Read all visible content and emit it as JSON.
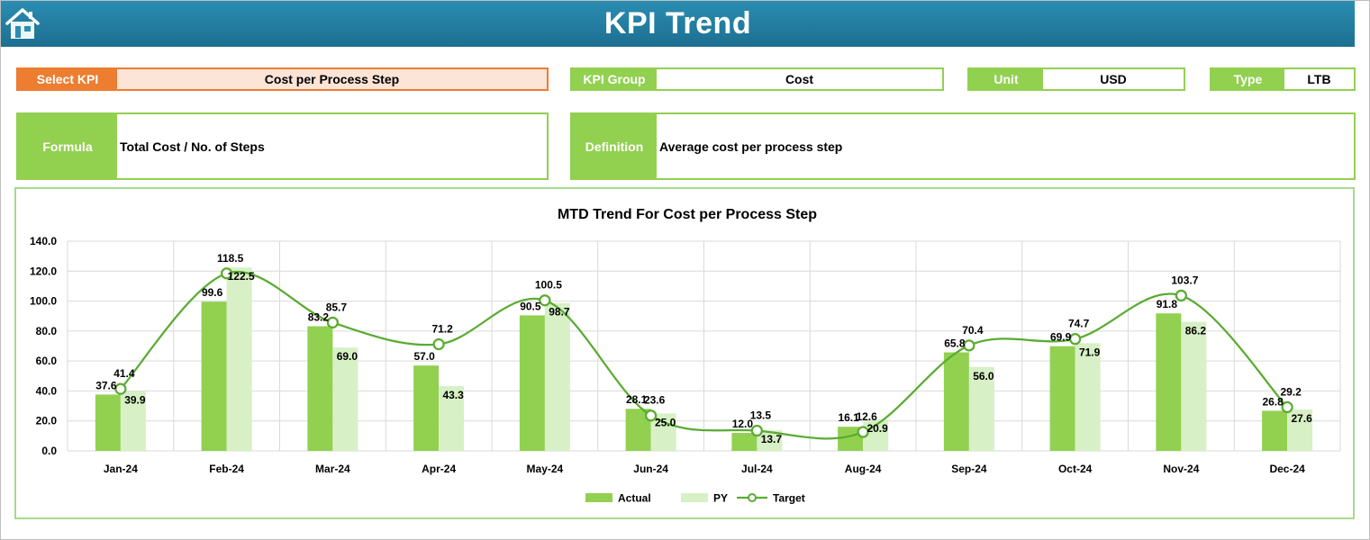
{
  "header": {
    "title": "KPI Trend",
    "home_icon": "home-icon"
  },
  "select_kpi": {
    "label": "Select KPI",
    "value": "Cost per Process Step"
  },
  "kpi_group": {
    "label": "KPI Group",
    "value": "Cost"
  },
  "unit": {
    "label": "Unit",
    "value": "USD"
  },
  "type": {
    "label": "Type",
    "value": "LTB"
  },
  "formula": {
    "label": "Formula",
    "value": "Total Cost / No. of Steps"
  },
  "definition": {
    "label": "Definition",
    "value": "Average cost per process step"
  },
  "colors": {
    "actual": "#92d050",
    "py": "#d7f0c6",
    "target": "#5bab32",
    "accent": "#ed7d31",
    "banner": "#1d6f90"
  },
  "chart_data": {
    "type": "bar",
    "title": "MTD Trend For Cost per Process Step",
    "xlabel": "",
    "ylabel": "",
    "categories": [
      "Jan-24",
      "Feb-24",
      "Mar-24",
      "Apr-24",
      "May-24",
      "Jun-24",
      "Jul-24",
      "Aug-24",
      "Sep-24",
      "Oct-24",
      "Nov-24",
      "Dec-24"
    ],
    "ylim": [
      0,
      140
    ],
    "y_ticks": [
      "0.0",
      "20.0",
      "40.0",
      "60.0",
      "80.0",
      "100.0",
      "120.0",
      "140.0"
    ],
    "grid": true,
    "legend_position": "bottom",
    "series": [
      {
        "name": "Actual",
        "kind": "bar",
        "values": [
          37.6,
          99.6,
          83.2,
          57.0,
          90.5,
          28.1,
          12.0,
          16.1,
          65.8,
          69.9,
          91.8,
          26.8
        ],
        "labels": [
          "37.6",
          "99.6",
          "83.2",
          "57.0",
          "90.5",
          "28.1",
          "12.0",
          "16.1",
          "65.8",
          "69.9",
          "91.8",
          "26.8"
        ]
      },
      {
        "name": "PY",
        "kind": "bar",
        "values": [
          39.9,
          122.5,
          69.0,
          43.3,
          98.7,
          25.0,
          13.7,
          20.9,
          56.0,
          71.9,
          86.2,
          27.6
        ],
        "labels": [
          "39.9",
          "122.5",
          "69.0",
          "43.3",
          "98.7",
          "25.0",
          "13.7",
          "20.9",
          "56.0",
          "71.9",
          "86.2",
          "27.6"
        ]
      },
      {
        "name": "Target",
        "kind": "line",
        "values": [
          41.4,
          118.5,
          85.7,
          71.2,
          100.5,
          23.6,
          13.5,
          12.6,
          70.4,
          74.7,
          103.7,
          29.2
        ],
        "labels": [
          "41.4",
          "118.5",
          "85.7",
          "71.2",
          "100.5",
          "23.6",
          "13.5",
          "12.6",
          "70.4",
          "74.7",
          "103.7",
          "29.2"
        ]
      }
    ]
  }
}
